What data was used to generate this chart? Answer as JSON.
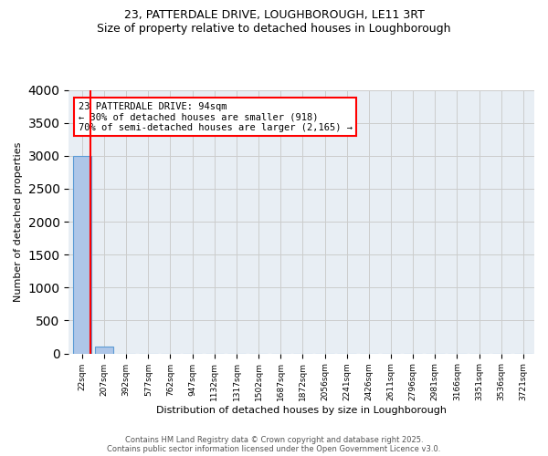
{
  "title1": "23, PATTERDALE DRIVE, LOUGHBOROUGH, LE11 3RT",
  "title2": "Size of property relative to detached houses in Loughborough",
  "xlabel": "Distribution of detached houses by size in Loughborough",
  "ylabel": "Number of detached properties",
  "bin_labels": [
    "22sqm",
    "207sqm",
    "392sqm",
    "577sqm",
    "762sqm",
    "947sqm",
    "1132sqm",
    "1317sqm",
    "1502sqm",
    "1687sqm",
    "1872sqm",
    "2056sqm",
    "2241sqm",
    "2426sqm",
    "2611sqm",
    "2796sqm",
    "2981sqm",
    "3166sqm",
    "3351sqm",
    "3536sqm",
    "3721sqm"
  ],
  "bar_values": [
    3000,
    110,
    0,
    0,
    0,
    0,
    0,
    0,
    0,
    0,
    0,
    0,
    0,
    0,
    0,
    0,
    0,
    0,
    0,
    0,
    0
  ],
  "bar_color": "#aec6e8",
  "bar_edge_color": "#5b9bd5",
  "annotation_title": "23 PATTERDALE DRIVE: 94sqm",
  "annotation_line2": "← 30% of detached houses are smaller (918)",
  "annotation_line3": "70% of semi-detached houses are larger (2,165) →",
  "ylim": [
    0,
    4000
  ],
  "yticks": [
    0,
    500,
    1000,
    1500,
    2000,
    2500,
    3000,
    3500,
    4000
  ],
  "grid_color": "#cccccc",
  "bg_color": "#e8eef4",
  "red_line_x": 0.39,
  "footer1": "Contains HM Land Registry data © Crown copyright and database right 2025.",
  "footer2": "Contains public sector information licensed under the Open Government Licence v3.0."
}
